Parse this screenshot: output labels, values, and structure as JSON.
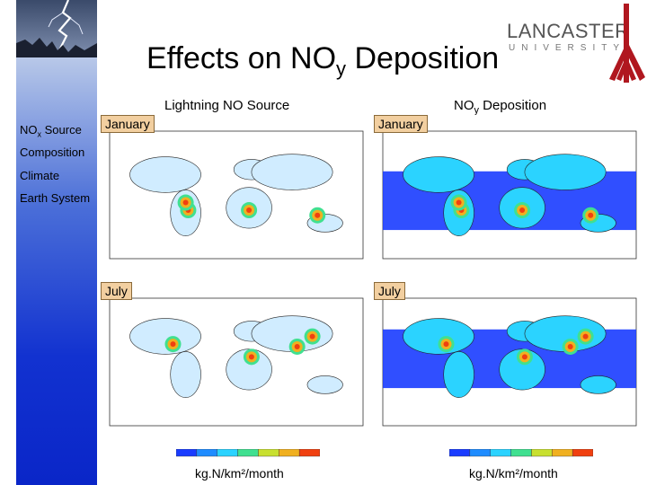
{
  "slide": {
    "title_main": "Effects on NO",
    "title_sub": "y",
    "title_tail": " Deposition"
  },
  "logo": {
    "word": "LANCASTER",
    "sub": "UNIVERSITY"
  },
  "columns": {
    "left": {
      "heading": "Lightning NO Source"
    },
    "right": {
      "heading_main": "NO",
      "heading_sub": "y",
      "heading_tail": " Deposition"
    }
  },
  "sidebar": {
    "items": [
      {
        "main": "NO",
        "sub": "x",
        "tail": " Source"
      },
      {
        "main": "Composition"
      },
      {
        "main": "Climate"
      },
      {
        "main": "Earth System"
      }
    ]
  },
  "panels": {
    "top_left": {
      "month": "January"
    },
    "top_right": {
      "month": "January"
    },
    "bottom_left": {
      "month": "July"
    },
    "bottom_right": {
      "month": "July"
    }
  },
  "units": {
    "left": "kg.N/km²/month",
    "right": "kg.N/km²/month"
  },
  "colors": {
    "sidebar_gradient_top": "#b8c8e8",
    "sidebar_gradient_bottom": "#0a26c8",
    "month_tag_bg": "#f2cfa0",
    "map_ocean": "#ffffff",
    "map_low": "#1a3cff",
    "map_mid": "#2bd3ff",
    "map_high": "#f04010",
    "logo_red": "#b0171f"
  }
}
